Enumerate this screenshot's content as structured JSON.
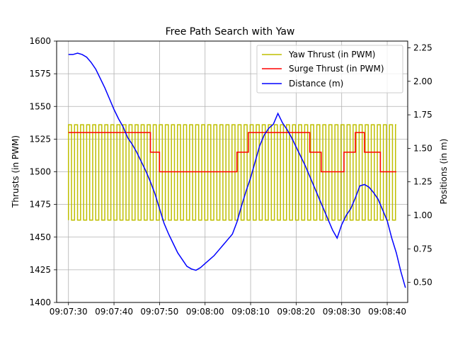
{
  "chart_data": {
    "type": "line",
    "title": "Free Path Search with Yaw",
    "ylabel_left": "Thrusts (in PWM)",
    "ylabel_right": "Positions (in m)",
    "xlabel": "",
    "grid": true,
    "legend_position": "top-right",
    "x_ticks": [
      "09:07:30",
      "09:07:40",
      "09:07:50",
      "09:08:00",
      "09:08:10",
      "09:08:20",
      "09:08:30",
      "09:08:40"
    ],
    "x_tick_seconds": [
      0,
      10,
      20,
      30,
      40,
      50,
      60,
      70
    ],
    "xlim_seconds": [
      -2.6,
      74.5
    ],
    "ylim_left": [
      1400,
      1600
    ],
    "yticks_left": [
      1400,
      1425,
      1450,
      1475,
      1500,
      1525,
      1550,
      1575,
      1600
    ],
    "ylim_right": [
      0.35,
      2.3
    ],
    "yticks_right": [
      0.5,
      0.75,
      1.0,
      1.25,
      1.5,
      1.75,
      2.0,
      2.25
    ],
    "yticks_right_labels": [
      "0.50",
      "0.75",
      "1.00",
      "1.25",
      "1.50",
      "1.75",
      "2.00",
      "2.25"
    ],
    "series": [
      {
        "name": "Yaw Thrust (in PWM)",
        "axis": "left",
        "color": "#bfbf00",
        "low": 1463,
        "high": 1536,
        "x_start": 0,
        "x_end": 72,
        "period": 1.33
      },
      {
        "name": "Surge Thrust (in PWM)",
        "axis": "left",
        "color": "#ff0000",
        "steps": [
          [
            0,
            1530
          ],
          [
            18,
            1515
          ],
          [
            20,
            1500
          ],
          [
            37,
            1515
          ],
          [
            39.5,
            1530
          ],
          [
            53,
            1515
          ],
          [
            55.5,
            1500
          ],
          [
            60.5,
            1515
          ],
          [
            63,
            1530
          ],
          [
            65,
            1515
          ],
          [
            68.5,
            1500
          ],
          [
            72,
            1500
          ]
        ]
      },
      {
        "name": "Distance (m)",
        "axis": "right",
        "color": "#0000ff",
        "x": [
          0,
          1,
          2,
          3,
          4,
          5,
          6,
          7,
          8,
          9,
          10,
          11,
          12,
          13,
          14,
          15,
          16,
          17,
          18,
          19,
          20,
          21,
          22,
          23,
          24,
          25,
          26,
          27,
          28,
          29,
          30,
          31,
          32,
          33,
          34,
          35,
          36,
          37,
          38,
          39,
          40,
          41,
          42,
          43,
          44,
          45,
          46,
          47,
          48,
          49,
          50,
          51,
          52,
          53,
          54,
          55,
          56,
          57,
          58,
          59,
          60,
          61,
          62,
          63,
          64,
          65,
          66,
          67,
          68,
          69,
          70,
          71,
          72,
          73,
          74
        ],
        "y": [
          2.2,
          2.2,
          2.21,
          2.2,
          2.18,
          2.14,
          2.09,
          2.02,
          1.95,
          1.87,
          1.79,
          1.72,
          1.66,
          1.58,
          1.53,
          1.47,
          1.4,
          1.33,
          1.25,
          1.16,
          1.05,
          0.94,
          0.86,
          0.79,
          0.72,
          0.67,
          0.62,
          0.6,
          0.59,
          0.61,
          0.64,
          0.67,
          0.7,
          0.74,
          0.78,
          0.82,
          0.86,
          0.95,
          1.07,
          1.18,
          1.28,
          1.4,
          1.52,
          1.6,
          1.65,
          1.68,
          1.76,
          1.69,
          1.64,
          1.58,
          1.51,
          1.44,
          1.37,
          1.29,
          1.21,
          1.13,
          1.05,
          0.97,
          0.89,
          0.83,
          0.93,
          1.0,
          1.05,
          1.13,
          1.22,
          1.23,
          1.21,
          1.17,
          1.12,
          1.04,
          0.96,
          0.83,
          0.72,
          0.58,
          0.46
        ]
      }
    ]
  }
}
